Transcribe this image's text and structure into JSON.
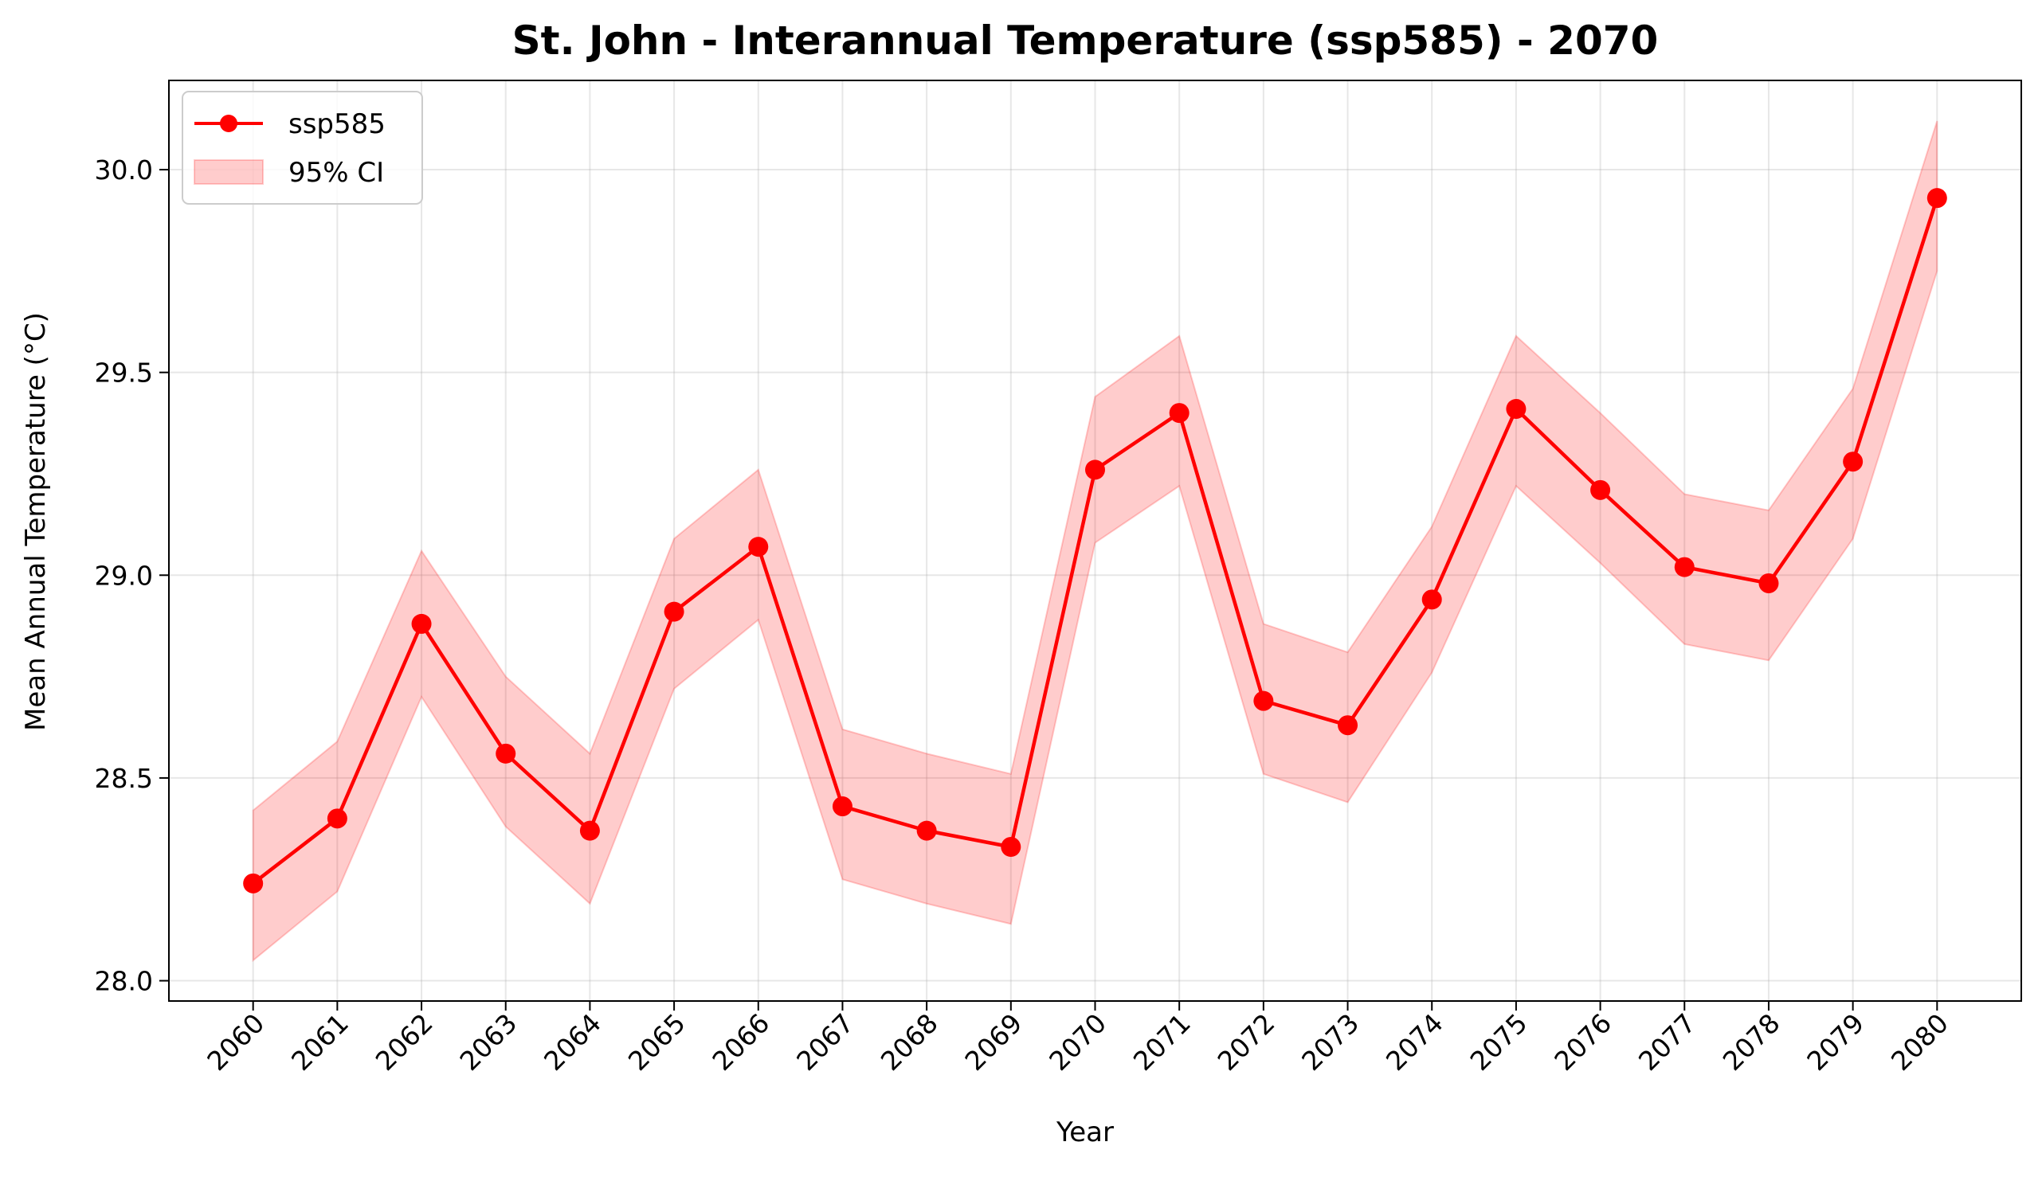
{
  "chart_data": {
    "type": "line",
    "title": "St. John - Interannual Temperature (ssp585) - 2070",
    "xlabel": "Year",
    "ylabel": "Mean Annual Temperature (°C)",
    "x": [
      2060,
      2061,
      2062,
      2063,
      2064,
      2065,
      2066,
      2067,
      2068,
      2069,
      2070,
      2071,
      2072,
      2073,
      2074,
      2075,
      2076,
      2077,
      2078,
      2079,
      2080
    ],
    "x_tick_labels": [
      "2060",
      "2061",
      "2062",
      "2063",
      "2064",
      "2065",
      "2066",
      "2067",
      "2068",
      "2069",
      "2070",
      "2071",
      "2072",
      "2073",
      "2074",
      "2075",
      "2076",
      "2077",
      "2078",
      "2079",
      "2080"
    ],
    "y_ticks": [
      28.0,
      28.5,
      29.0,
      29.5,
      30.0
    ],
    "y_tick_labels": [
      "28.0",
      "28.5",
      "29.0",
      "29.5",
      "30.0"
    ],
    "ylim": [
      27.95,
      30.22
    ],
    "xlim": [
      2059.0,
      2081.0
    ],
    "grid": true,
    "legend_position": "upper-left",
    "series": [
      {
        "name": "ssp585",
        "color": "#ff0000",
        "marker": "circle",
        "values": [
          28.24,
          28.4,
          28.88,
          28.56,
          28.37,
          28.91,
          29.07,
          28.43,
          28.37,
          28.33,
          29.26,
          29.4,
          28.69,
          28.63,
          28.94,
          29.41,
          29.21,
          29.02,
          28.98,
          29.28,
          29.93
        ]
      }
    ],
    "band": {
      "name": "95% CI",
      "color": "#ff0000",
      "lower": [
        28.05,
        28.22,
        28.7,
        28.38,
        28.19,
        28.72,
        28.89,
        28.25,
        28.19,
        28.14,
        29.08,
        29.22,
        28.51,
        28.44,
        28.76,
        29.22,
        29.03,
        28.83,
        28.79,
        29.09,
        29.75
      ],
      "upper": [
        28.42,
        28.59,
        29.06,
        28.75,
        28.56,
        29.09,
        29.26,
        28.62,
        28.56,
        28.51,
        29.44,
        29.59,
        28.88,
        28.81,
        29.12,
        29.59,
        29.4,
        29.2,
        29.16,
        29.46,
        30.12
      ]
    }
  }
}
